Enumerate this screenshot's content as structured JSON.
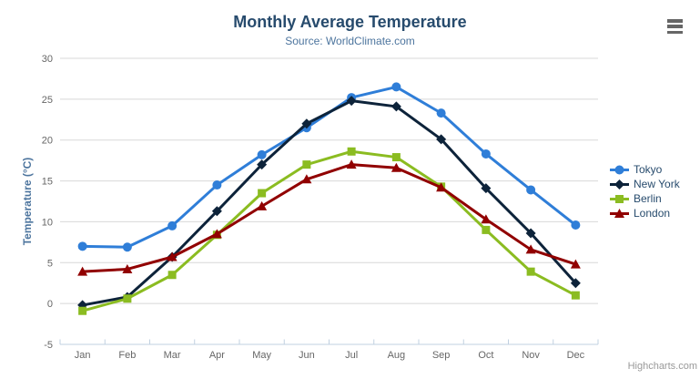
{
  "header": {
    "title": "Monthly Average Temperature",
    "subtitle": "Source: WorldClimate.com"
  },
  "toolbar": {
    "export_menu_icon": "hamburger-menu"
  },
  "credit": {
    "label": "Highcharts.com"
  },
  "colors": {
    "background": "#ffffff",
    "title_text": "#274b6d",
    "subtitle_text": "#4d759e",
    "axis_label": "#666666",
    "axis_title": "#4d759e",
    "grid_line": "#d8d8d8",
    "axis_line": "#c0d0e0",
    "legend_text": "#274b6d",
    "credit_text": "#999999",
    "menu_icon": "#666666"
  },
  "chart_data": {
    "type": "line",
    "title": "Monthly Average Temperature",
    "subtitle": "Source: WorldClimate.com",
    "xlabel": "",
    "ylabel": "Temperature (°C)",
    "ylim": [
      -5,
      30
    ],
    "yticks": [
      -5,
      0,
      5,
      10,
      15,
      20,
      25,
      30
    ],
    "grid": true,
    "legend_position": "right",
    "categories": [
      "Jan",
      "Feb",
      "Mar",
      "Apr",
      "May",
      "Jun",
      "Jul",
      "Aug",
      "Sep",
      "Oct",
      "Nov",
      "Dec"
    ],
    "series": [
      {
        "name": "Tokyo",
        "color": "#2f7ed8",
        "marker": "circle",
        "values": [
          7.0,
          6.9,
          9.5,
          14.5,
          18.2,
          21.5,
          25.2,
          26.5,
          23.3,
          18.3,
          13.9,
          9.6
        ]
      },
      {
        "name": "New York",
        "color": "#0d233a",
        "marker": "diamond",
        "values": [
          -0.2,
          0.8,
          5.7,
          11.3,
          17.0,
          22.0,
          24.8,
          24.1,
          20.1,
          14.1,
          8.6,
          2.5
        ]
      },
      {
        "name": "Berlin",
        "color": "#8bbc21",
        "marker": "square",
        "values": [
          -0.9,
          0.6,
          3.5,
          8.4,
          13.5,
          17.0,
          18.6,
          17.9,
          14.3,
          9.0,
          3.9,
          1.0
        ]
      },
      {
        "name": "London",
        "color": "#910000",
        "marker": "triangle",
        "values": [
          3.9,
          4.2,
          5.7,
          8.5,
          11.9,
          15.2,
          17.0,
          16.6,
          14.2,
          10.3,
          6.6,
          4.8
        ]
      }
    ]
  }
}
